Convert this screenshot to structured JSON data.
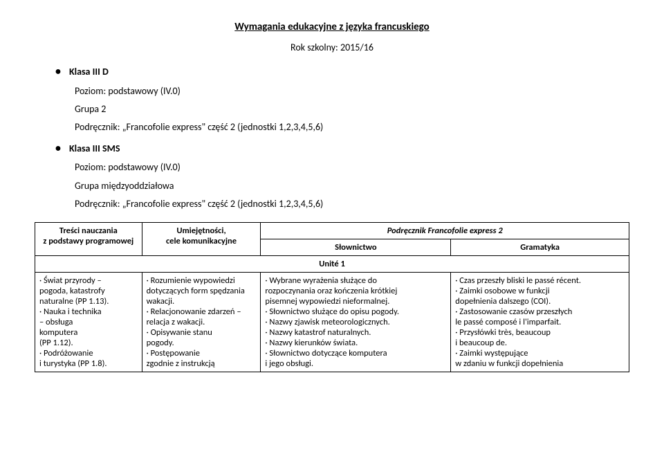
{
  "title": "Wymagania edukacyjne z języka francuskiego",
  "year": "Rok szkolny:  2015/16",
  "section1": {
    "klasa": "Klasa III D",
    "poziom": "Poziom: podstawowy (IV.0)",
    "grupa": "Grupa 2",
    "podrecznik": "Podręcznik: „Francofolie express\" część 2 (jednostki 1,2,3,4,5,6)"
  },
  "section2": {
    "klasa": "Klasa III SMS",
    "poziom": "Poziom: podstawowy (IV.0)",
    "grupa": "Grupa międzyoddziałowa",
    "podrecznik": "Podręcznik: „Francofolie express\" część 2 (jednostki 1,2,3,4,5,6)"
  },
  "table": {
    "book_header": "Podręcznik Francofolie express 2",
    "headers": {
      "c1a": "Treści nauczania",
      "c1b": "z podstawy programowej",
      "c2a": "Umiejętności,",
      "c2b": "cele komunikacyjne",
      "c3": "Słownictwo",
      "c4": "Gramatyka"
    },
    "unit": "Unité 1",
    "row": {
      "c1": [
        "· Świat przyrody –",
        "pogoda, katastrofy",
        "naturalne (PP 1.13).",
        "· Nauka i technika",
        "– obsługa",
        "komputera",
        "(PP 1.12).",
        "· Podróżowanie",
        "i turystyka (PP 1.8)."
      ],
      "c2": [
        "· Rozumienie wypowiedzi",
        "dotyczących form spędzania",
        "wakacji.",
        "· Relacjonowanie zdarzeń –",
        "relacja z wakacji.",
        "· Opisywanie stanu",
        "pogody.",
        "· Postępowanie",
        "zgodnie z instrukcją"
      ],
      "c3": [
        "· Wybrane wyrażenia służące do",
        "rozpoczynania oraz kończenia krótkiej",
        "pisemnej wypowiedzi nieformalnej.",
        "· Słownictwo służące do opisu pogody.",
        "· Nazwy zjawisk meteorologicznych.",
        "· Nazwy katastrof naturalnych.",
        "· Nazwy kierunków świata.",
        "· Słownictwo dotyczące komputera",
        "i jego obsługi."
      ],
      "c4": [
        "· Czas przeszły bliski le passé récent.",
        "· Zaimki osobowe w funkcji",
        "dopełnienia dalszego (COI).",
        "· Zastosowanie czasów przeszłych",
        "le passé composé i l'imparfait.",
        "· Przysłówki très, beaucoup",
        "i beaucoup de.",
        "· Zaimki występujące",
        "w zdaniu w funkcji dopełnienia"
      ]
    }
  }
}
